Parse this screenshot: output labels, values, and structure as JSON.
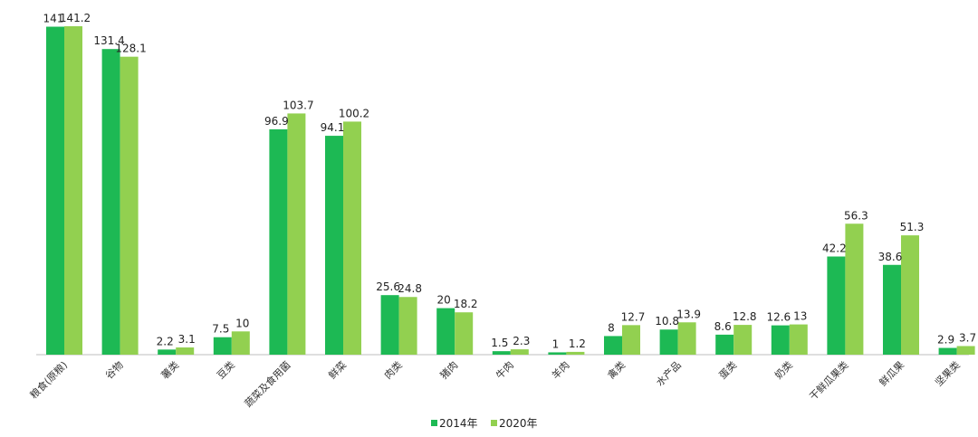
{
  "chart_data": {
    "type": "bar",
    "categories": [
      "粮食(原粮)",
      "谷物",
      "薯类",
      "豆类",
      "蔬菜及食用菌",
      "鲜菜",
      "肉类",
      "猪肉",
      "牛肉",
      "羊肉",
      "禽类",
      "水产品",
      "蛋类",
      "奶类",
      "干鲜瓜果类",
      "鲜瓜果",
      "坚果类"
    ],
    "series": [
      {
        "name": "2014年",
        "values": [
          141,
          131.4,
          2.2,
          7.5,
          96.9,
          94.1,
          25.6,
          20,
          1.5,
          1,
          8,
          10.8,
          8.6,
          12.6,
          42.2,
          38.6,
          2.9
        ]
      },
      {
        "name": "2020年",
        "values": [
          141.2,
          128.1,
          3.1,
          10,
          103.7,
          100.2,
          24.8,
          18.2,
          2.3,
          1.2,
          12.7,
          13.9,
          12.8,
          13,
          56.3,
          51.3,
          3.7
        ]
      }
    ],
    "ylim": [
      0,
      145
    ],
    "grid": false,
    "legend_position": "bottom",
    "colors": [
      "#1db954",
      "#92d050"
    ]
  }
}
